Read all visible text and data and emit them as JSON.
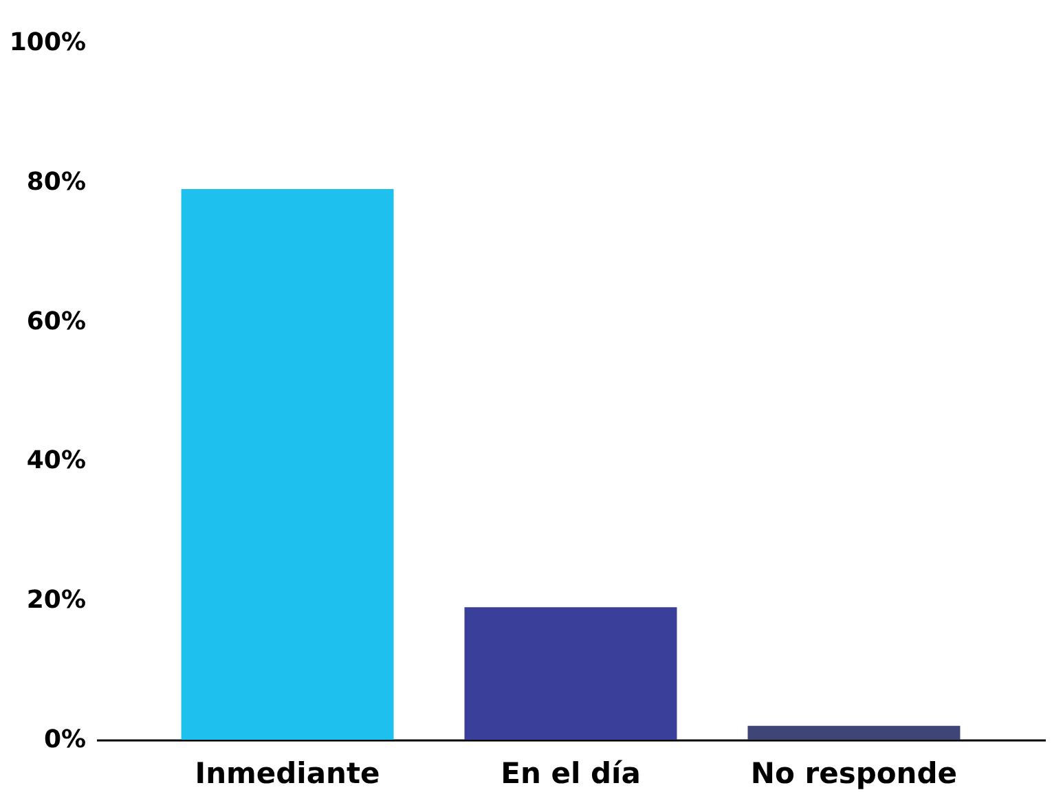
{
  "chart_data": {
    "type": "bar",
    "categories": [
      "Inmediante",
      "En el día",
      "No responde"
    ],
    "values": [
      79,
      19,
      2
    ],
    "colors": [
      "#1ec0ee",
      "#3a3f9a",
      "#3f4577"
    ],
    "ylim": [
      0,
      100
    ],
    "yticks": [
      {
        "value": 0,
        "label": "0%"
      },
      {
        "value": 20,
        "label": "20%"
      },
      {
        "value": 40,
        "label": "40%"
      },
      {
        "value": 60,
        "label": "60%"
      },
      {
        "value": 80,
        "label": "80%"
      },
      {
        "value": 100,
        "label": "100%"
      }
    ],
    "grid": false
  }
}
